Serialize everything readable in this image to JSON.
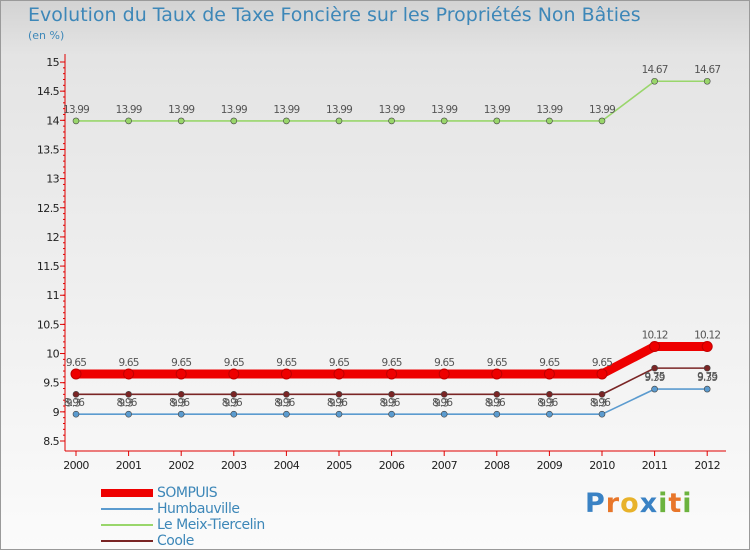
{
  "chart_data": {
    "type": "line",
    "title": "Evolution du Taux de Taxe Foncière sur les Propriétés Non Bâties",
    "subtitle": "(en %)",
    "x": [
      "2000",
      "2001",
      "2002",
      "2003",
      "2004",
      "2005",
      "2006",
      "2007",
      "2008",
      "2009",
      "2010",
      "2011",
      "2012"
    ],
    "ylim": [
      8.5,
      15
    ],
    "yticks": [
      "8.5",
      "9",
      "9.5",
      "10",
      "10.5",
      "11",
      "11.5",
      "12",
      "12.5",
      "13",
      "13.5",
      "14",
      "14.5",
      "15"
    ],
    "grid": false,
    "legend_position": "bottom-left",
    "series": [
      {
        "name": "SOMPUIS",
        "color": "#ee0000",
        "labels_above": true,
        "values": [
          9.65,
          9.65,
          9.65,
          9.65,
          9.65,
          9.65,
          9.65,
          9.65,
          9.65,
          9.65,
          9.65,
          10.12,
          10.12
        ],
        "labels": [
          "9.65",
          "9.65",
          "9.65",
          "9.65",
          "9.65",
          "9.65",
          "9.65",
          "9.65",
          "9.65",
          "9.65",
          "9.65",
          "10.12",
          "10.12"
        ]
      },
      {
        "name": "Humbauville",
        "color": "#5b9bcf",
        "labels_above": true,
        "values": [
          8.96,
          8.96,
          8.96,
          8.96,
          8.96,
          8.96,
          8.96,
          8.96,
          8.96,
          8.96,
          8.96,
          9.39,
          9.39
        ],
        "labels": [
          "8.96",
          "8.96",
          "8.96",
          "8.96",
          "8.96",
          "8.96",
          "8.96",
          "8.96",
          "8.96",
          "8.96",
          "8.96",
          "9.39",
          "9.39"
        ]
      },
      {
        "name": "Le Meix-Tiercelin",
        "color": "#99d66b",
        "labels_above": true,
        "values": [
          13.99,
          13.99,
          13.99,
          13.99,
          13.99,
          13.99,
          13.99,
          13.99,
          13.99,
          13.99,
          13.99,
          14.67,
          14.67
        ],
        "labels": [
          "13.99",
          "13.99",
          "13.99",
          "13.99",
          "13.99",
          "13.99",
          "13.99",
          "13.99",
          "13.99",
          "13.99",
          "13.99",
          "14.67",
          "14.67"
        ]
      },
      {
        "name": "Coole",
        "color": "#7a2525",
        "labels_above": false,
        "values": [
          9.3,
          9.3,
          9.3,
          9.3,
          9.3,
          9.3,
          9.3,
          9.3,
          9.3,
          9.3,
          9.3,
          9.75,
          9.75
        ],
        "labels": [
          "9.3",
          "9.3",
          "9.3",
          "9.3",
          "9.3",
          "9.3",
          "9.3",
          "9.3",
          "9.3",
          "9.3",
          "9.3",
          "9.75",
          "9.75"
        ]
      }
    ]
  },
  "brand": {
    "letters": [
      "P",
      "r",
      "o",
      "x",
      "i",
      "t",
      "i"
    ]
  }
}
